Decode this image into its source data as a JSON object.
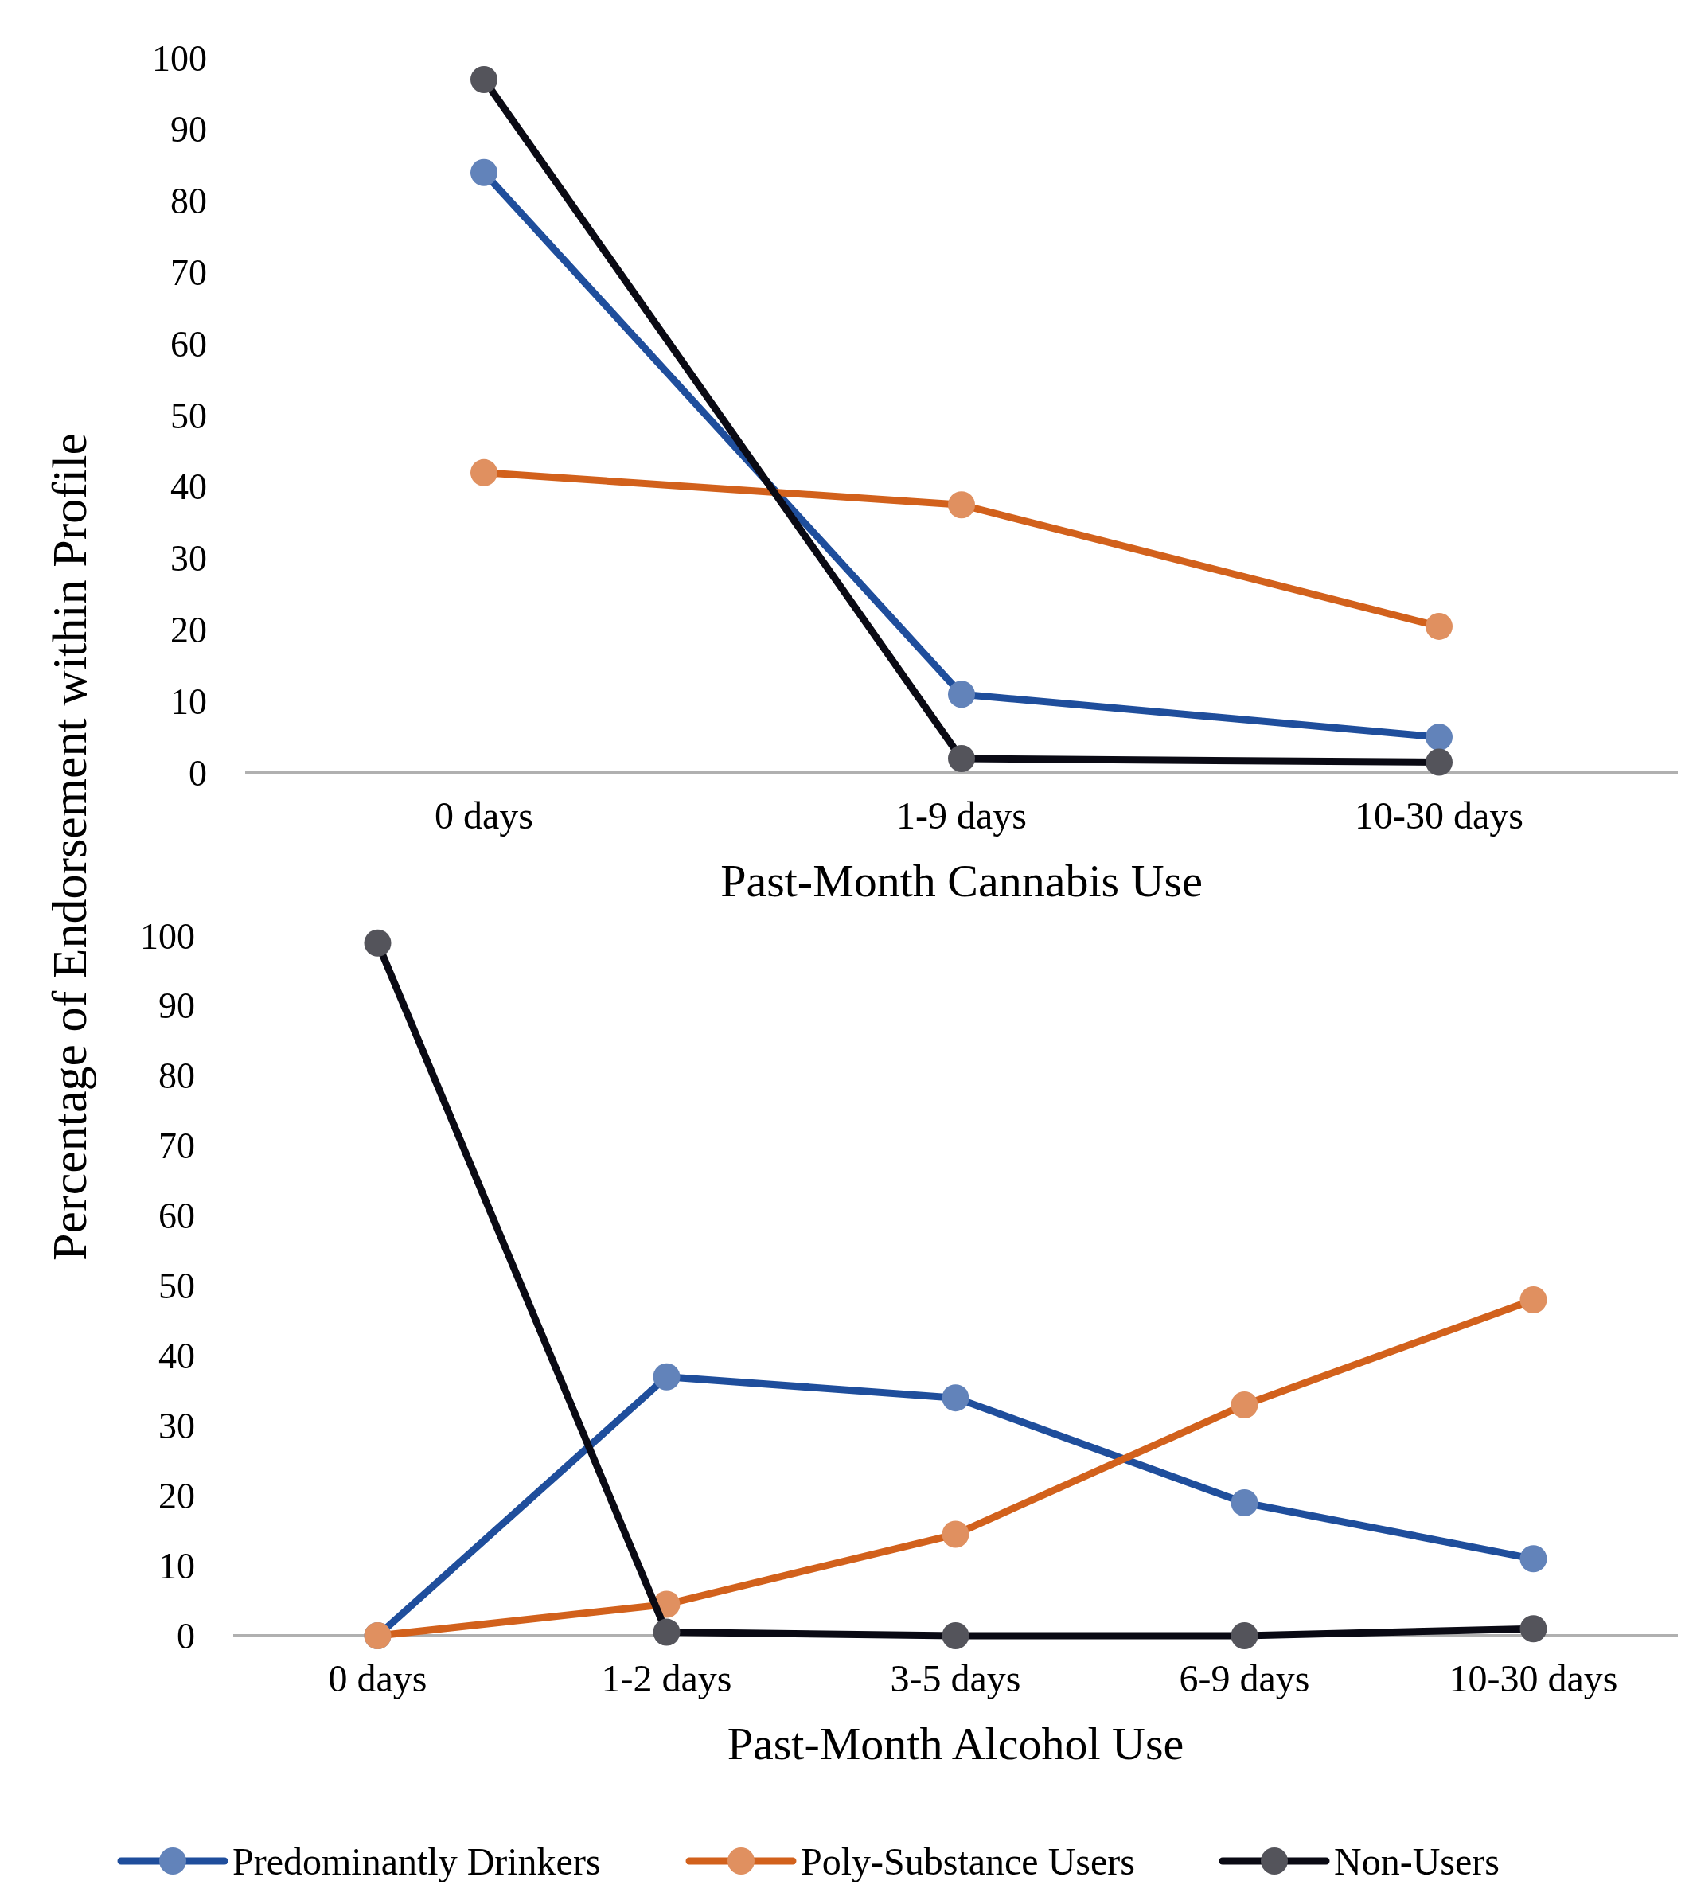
{
  "chart_data": [
    {
      "type": "line",
      "xlabel": "Past-Month Cannabis Use",
      "ylabel": "Percentage of Endorsement within Profile",
      "categories": [
        "0 days",
        "1-9 days",
        "10-30 days"
      ],
      "series": [
        {
          "name": "Predominantly Drinkers",
          "color": "#1f4e9c",
          "values": [
            84,
            11,
            5
          ]
        },
        {
          "name": "Poly-Substance Users",
          "color": "#d2611c",
          "values": [
            42,
            37.5,
            20.5
          ]
        },
        {
          "name": "Non-Users",
          "color": "#0a0a14",
          "values": [
            97,
            2,
            1.5
          ]
        }
      ],
      "ylim": [
        0,
        100
      ],
      "yticks": [
        0,
        10,
        20,
        30,
        40,
        50,
        60,
        70,
        80,
        90,
        100
      ],
      "marker": "circle",
      "legend": "bottom"
    },
    {
      "type": "line",
      "xlabel": "Past-Month Alcohol Use",
      "categories": [
        "0 days",
        "1-2 days",
        "3-5 days",
        "6-9 days",
        "10-30 days"
      ],
      "series": [
        {
          "name": "Predominantly Drinkers",
          "color": "#1f4e9c",
          "values": [
            0,
            37,
            34,
            19,
            11
          ]
        },
        {
          "name": "Poly-Substance Users",
          "color": "#d2611c",
          "values": [
            0,
            4.5,
            14.5,
            33,
            48
          ]
        },
        {
          "name": "Non-Users",
          "color": "#0a0a14",
          "values": [
            99,
            0.5,
            0,
            0,
            1
          ]
        }
      ],
      "ylim": [
        0,
        100
      ],
      "yticks": [
        0,
        10,
        20,
        30,
        40,
        50,
        60,
        70,
        80,
        90,
        100
      ],
      "marker": "circle",
      "legend": "bottom"
    }
  ]
}
